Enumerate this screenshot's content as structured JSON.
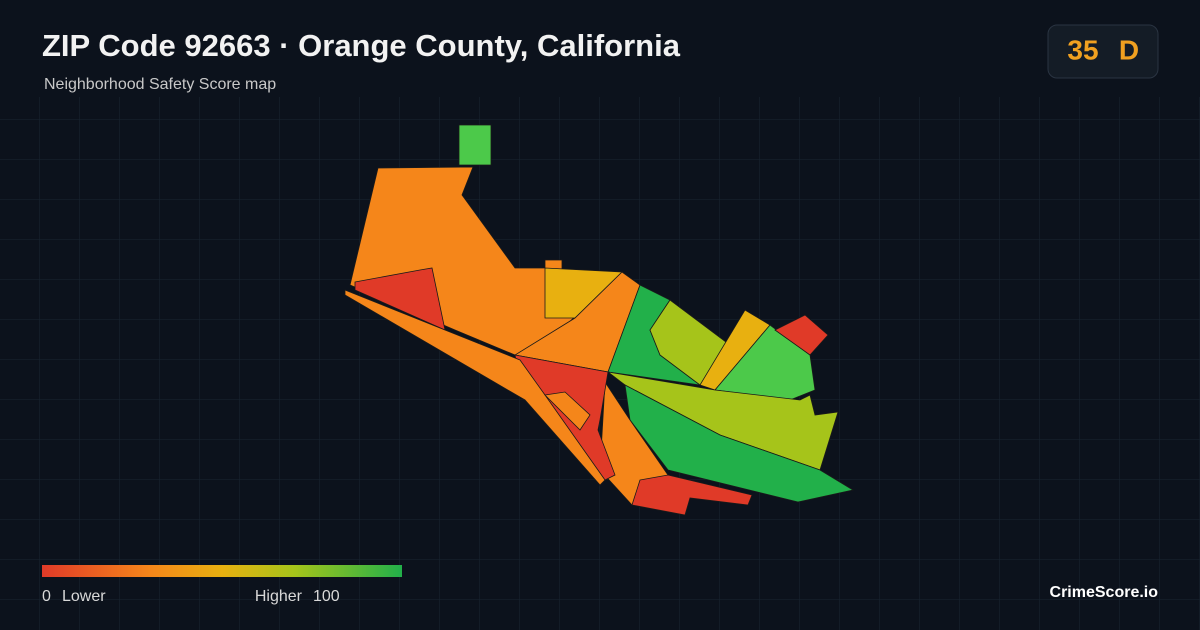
{
  "header": {
    "title": "ZIP Code 92663 · Orange County, California",
    "subtitle": "Neighborhood Safety Score map"
  },
  "badge": {
    "score": "35",
    "grade": "D"
  },
  "legend": {
    "min": "0",
    "min_label": "Lower",
    "max_label": "Higher",
    "max": "100"
  },
  "brand": "CrimeScore.io"
}
